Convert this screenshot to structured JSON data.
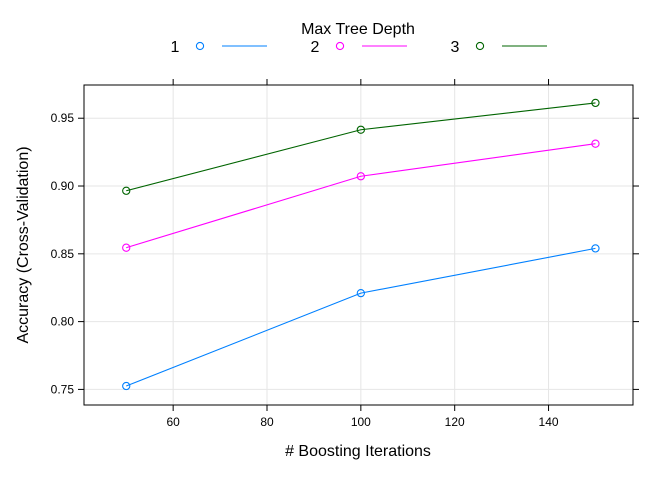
{
  "chart_data": {
    "type": "line",
    "legend_title": "Max Tree Depth",
    "legend_position": "top",
    "xlabel": "# Boosting Iterations",
    "ylabel": "Accuracy (Cross-Validation)",
    "x": [
      50,
      100,
      150
    ],
    "xlim": [
      41,
      158
    ],
    "ylim": [
      0.7385,
      0.9745
    ],
    "xticks": [
      60,
      80,
      100,
      120,
      140
    ],
    "yticks": [
      0.75,
      0.8,
      0.85,
      0.9,
      0.95
    ],
    "ytick_labels": [
      "0.75",
      "0.80",
      "0.85",
      "0.90",
      "0.95"
    ],
    "grid": true,
    "series": [
      {
        "name": "1",
        "color": "#0080ff",
        "values": [
          0.7525,
          0.821,
          0.854
        ]
      },
      {
        "name": "2",
        "color": "#ff00ff",
        "values": [
          0.8545,
          0.9072,
          0.9312
        ]
      },
      {
        "name": "3",
        "color": "#006400",
        "values": [
          0.8965,
          0.9415,
          0.9613
        ]
      }
    ]
  }
}
